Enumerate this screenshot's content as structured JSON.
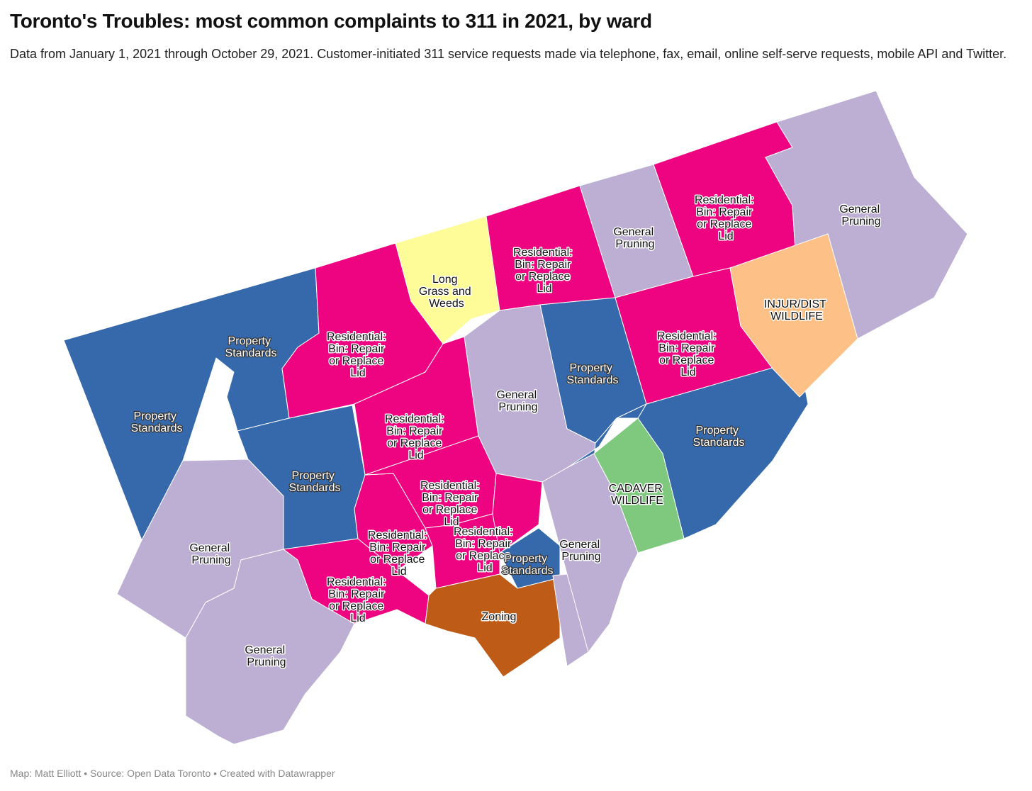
{
  "title": "Toronto's Troubles: most common complaints to 311 in 2021, by ward",
  "subtitle": "Data from January 1, 2021 through October 29, 2021. Customer-initiated 311 service requests made via telephone, fax, email, online self-serve requests, mobile API and Twitter.",
  "footer": "Map: Matt Elliott • Source: Open Data Toronto • Created with Datawrapper",
  "colors": {
    "property_standards": "#3569ab",
    "residential_bin": "#ee0481",
    "general_pruning": "#bcafd3",
    "long_grass": "#fdfc99",
    "injur_wildlife": "#fdc086",
    "cadaver_wildlife": "#7fc97f",
    "zoning": "#be5b17"
  },
  "labels": {
    "property_standards": [
      "Property",
      "Standards"
    ],
    "residential_bin": [
      "Residential:",
      "Bin: Repair",
      "or Replace",
      "Lid"
    ],
    "general_pruning": [
      "General",
      "Pruning"
    ],
    "long_grass": [
      "Long",
      "Grass and",
      "Weeds"
    ],
    "injur_wildlife": [
      "INJUR/DIST",
      "WILDLIFE"
    ],
    "cadaver_wildlife": [
      "CADAVER",
      "WILDLIFE"
    ],
    "zoning": [
      "Zoning"
    ],
    "property_standards_short": [
      "Property",
      "Standards"
    ],
    "residential_bin_cut": [
      "Residential:",
      "Bin: Repair",
      "or Replace",
      "Lid"
    ]
  },
  "wards": [
    {
      "id": "w01",
      "category": "property_standards"
    },
    {
      "id": "w02",
      "category": "property_standards"
    },
    {
      "id": "w03",
      "category": "residential_bin"
    },
    {
      "id": "w04",
      "category": "long_grass"
    },
    {
      "id": "w05",
      "category": "residential_bin"
    },
    {
      "id": "w06",
      "category": "general_pruning"
    },
    {
      "id": "w07",
      "category": "residential_bin"
    },
    {
      "id": "w08",
      "category": "general_pruning"
    },
    {
      "id": "w09",
      "category": "residential_bin"
    },
    {
      "id": "w10",
      "category": "property_standards"
    },
    {
      "id": "w11",
      "category": "general_pruning"
    },
    {
      "id": "w12",
      "category": "property_standards"
    },
    {
      "id": "w13",
      "category": "residential_bin"
    },
    {
      "id": "w14",
      "category": "injur_wildlife"
    },
    {
      "id": "w15",
      "category": "property_standards"
    },
    {
      "id": "w16",
      "category": "cadaver_wildlife"
    },
    {
      "id": "w17",
      "category": "general_pruning"
    },
    {
      "id": "w18",
      "category": "general_pruning"
    },
    {
      "id": "w19",
      "category": "general_pruning"
    },
    {
      "id": "w20",
      "category": "residential_bin"
    },
    {
      "id": "w21",
      "category": "residential_bin"
    },
    {
      "id": "w22",
      "category": "residential_bin"
    },
    {
      "id": "w23",
      "category": "residential_bin"
    },
    {
      "id": "w24",
      "category": "residential_bin"
    },
    {
      "id": "w25",
      "category": "property_standards"
    },
    {
      "id": "w26",
      "category": "zoning"
    },
    {
      "id": "w27",
      "category": "general_pruning"
    }
  ]
}
